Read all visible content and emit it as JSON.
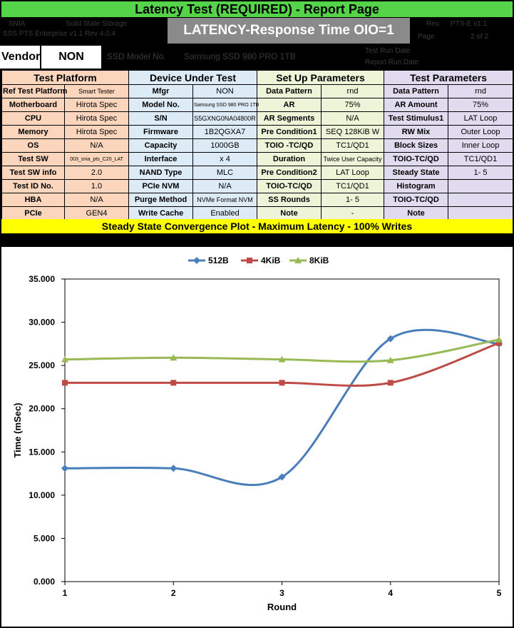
{
  "title": "Latency Test (REQUIRED) - Report Page",
  "header": {
    "left_line1": "SNIA",
    "left_line2": "SSS PTS Enterprise v1.1 Rev 4.0.4",
    "left_mid": "Solid State Storage",
    "right_date_label": "Rev.",
    "right_date_value": "PTS-E v1.1",
    "right_page_label": "Page",
    "right_page_value": "2 of 2",
    "latency_box": "LATENCY-Response Time OIO=1"
  },
  "vendor": {
    "label": "Vendor:",
    "value": "NON",
    "faint1": "SSD Model No.",
    "faint2": "Samsung SSD 980 PRO 1TB",
    "faint3": "Test Run Date",
    "faint4": "Report Run Date"
  },
  "table": {
    "headers": [
      "Test Platform",
      "Device Under Test",
      "Set Up Parameters",
      "Test Parameters"
    ],
    "rows": [
      [
        "Ref Test Platform",
        "Smart Tester",
        "Mfgr",
        "NON",
        "Data Pattern",
        "rnd",
        "Data Pattern",
        "rnd"
      ],
      [
        "Motherboard",
        "Hirota Spec",
        "Model No.",
        "Samsung SSD 980 PRO 1TB",
        "AR",
        "75%",
        "AR Amount",
        "75%"
      ],
      [
        "CPU",
        "Hirota Spec",
        "S/N",
        "S5GXNG0NA04800R",
        "AR Segments",
        "N/A",
        "Test Stimulus1",
        "LAT Loop"
      ],
      [
        "Memory",
        "Hirota Spec",
        "Firmware",
        "1B2QGXA7",
        "Pre Condition1",
        "SEQ 128KiB W",
        "RW Mix",
        "Outer Loop"
      ],
      [
        "OS",
        "N/A",
        "Capacity",
        "1000GB",
        "TOIO -TC/QD",
        "TC1/QD1",
        "Block Sizes",
        "Inner Loop"
      ],
      [
        "Test SW",
        "003_snia_pts_C20_LAT",
        "Interface",
        "x 4",
        "Duration",
        "Twice User Capacity",
        "TOIO-TC/QD",
        "TC1/QD1"
      ],
      [
        "Test SW info",
        "2.0",
        "NAND Type",
        "MLC",
        "Pre Condition2",
        "LAT Loop",
        "Steady State",
        "1- 5"
      ],
      [
        "Test ID No.",
        "1.0",
        "PCIe NVM",
        "N/A",
        "TOIO-TC/QD",
        "TC1/QD1",
        "Histogram",
        ""
      ],
      [
        "HBA",
        "N/A",
        "Purge Method",
        "NVMe Format NVM",
        "SS Rounds",
        "1- 5",
        "TOIO-TC/QD",
        ""
      ],
      [
        "PCIe",
        "GEN4",
        "Write Cache",
        "Enabled",
        "Note",
        "-",
        "Note",
        ""
      ]
    ]
  },
  "plot_banner": "Steady State Convergence Plot - Maximum Latency - 100% Writes",
  "chart_data": {
    "type": "line",
    "title": "",
    "xlabel": "Round",
    "ylabel": "Time (mSec)",
    "x": [
      1,
      2,
      3,
      4,
      5
    ],
    "ylim": [
      0,
      35
    ],
    "yticks": [
      "0.000",
      "5.000",
      "10.000",
      "15.000",
      "20.000",
      "25.000",
      "30.000",
      "35.000"
    ],
    "xticks": [
      "1",
      "2",
      "3",
      "4",
      "5"
    ],
    "legend_position": "top",
    "smooth": true,
    "series": [
      {
        "name": "512B",
        "values": [
          13.1,
          13.1,
          12.1,
          28.1,
          27.5
        ],
        "color": "#4a7ebb",
        "marker": "diamond"
      },
      {
        "name": "4KiB",
        "values": [
          23.0,
          23.0,
          23.0,
          23.0,
          27.6
        ],
        "color": "#be4b48",
        "marker": "square"
      },
      {
        "name": "8KiB",
        "values": [
          25.7,
          25.9,
          25.7,
          25.6,
          28.0
        ],
        "color": "#98b954",
        "marker": "triangle"
      }
    ]
  }
}
